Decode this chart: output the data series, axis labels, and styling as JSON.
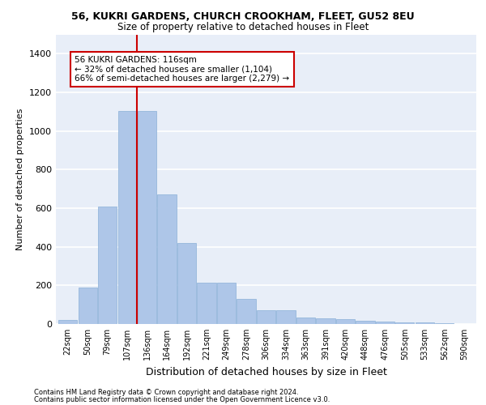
{
  "title1": "56, KUKRI GARDENS, CHURCH CROOKHAM, FLEET, GU52 8EU",
  "title2": "Size of property relative to detached houses in Fleet",
  "xlabel": "Distribution of detached houses by size in Fleet",
  "ylabel": "Number of detached properties",
  "bar_color": "#aec6e8",
  "bar_edge_color": "#8ab0d8",
  "background_color": "#e8eef8",
  "grid_color": "#ffffff",
  "categories": [
    "22sqm",
    "50sqm",
    "79sqm",
    "107sqm",
    "136sqm",
    "164sqm",
    "192sqm",
    "221sqm",
    "249sqm",
    "278sqm",
    "306sqm",
    "334sqm",
    "363sqm",
    "391sqm",
    "420sqm",
    "448sqm",
    "476sqm",
    "505sqm",
    "533sqm",
    "562sqm",
    "590sqm"
  ],
  "values": [
    20,
    190,
    610,
    1105,
    1105,
    670,
    420,
    215,
    215,
    130,
    70,
    70,
    35,
    30,
    25,
    15,
    12,
    8,
    8,
    5,
    2
  ],
  "ylim": [
    0,
    1500
  ],
  "yticks": [
    0,
    200,
    400,
    600,
    800,
    1000,
    1200,
    1400
  ],
  "property_line_bin": 3.48,
  "annotation_text": "56 KUKRI GARDENS: 116sqm\n← 32% of detached houses are smaller (1,104)\n66% of semi-detached houses are larger (2,279) →",
  "annotation_box_color": "#ffffff",
  "annotation_box_edge": "#cc0000",
  "red_line_color": "#cc0000",
  "footer1": "Contains HM Land Registry data © Crown copyright and database right 2024.",
  "footer2": "Contains public sector information licensed under the Open Government Licence v3.0."
}
